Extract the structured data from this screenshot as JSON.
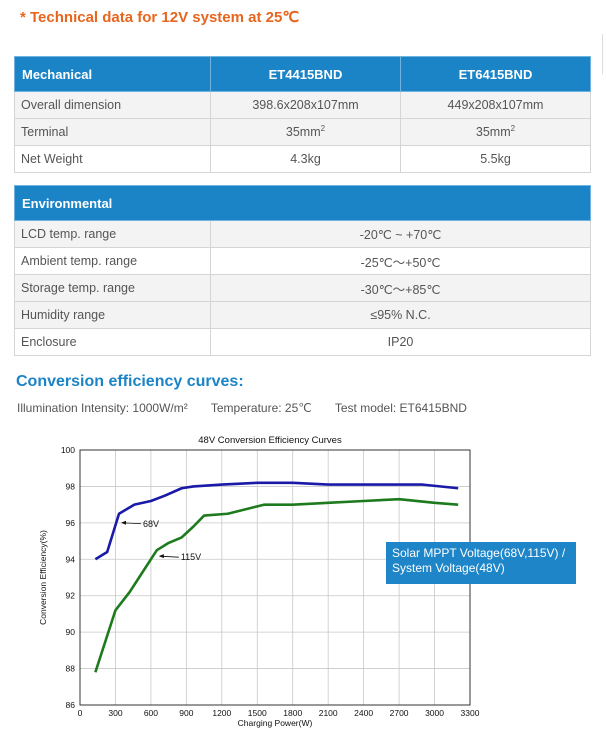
{
  "note": "* Technical data for 12V system at 25℃",
  "mechanical": {
    "headers": [
      "Mechanical",
      "ET4415BND",
      "ET6415BND"
    ],
    "rows": [
      {
        "label": "Overall dimension",
        "v1": "398.6x208x107mm",
        "v2": "449x208x107mm"
      },
      {
        "label": "Terminal",
        "v1": "35mm",
        "v2": "35mm",
        "sup": "2"
      },
      {
        "label": "Net Weight",
        "v1": "4.3kg",
        "v2": "5.5kg"
      }
    ]
  },
  "environmental": {
    "header": "Environmental",
    "rows": [
      {
        "label": "LCD temp. range",
        "value": "-20℃ ~ +70℃"
      },
      {
        "label": "Ambient temp. range",
        "value": "-25℃～+50℃"
      },
      {
        "label": "Storage temp. range",
        "value": "-30℃～+85℃"
      },
      {
        "label": "Humidity range",
        "value": "≤95% N.C."
      },
      {
        "label": "Enclosure",
        "value": "IP20"
      }
    ]
  },
  "conversion": {
    "heading": "Conversion efficiency curves:",
    "illumination": "Illumination Intensity: 1000W/m²",
    "temperature": "Temperature: 25℃",
    "model": "Test model: ET6415BND"
  },
  "legend_box": {
    "line1": "Solar MPPT Voltage(68V,115V) /",
    "line2": "System Voltage(48V)"
  },
  "chart_data": {
    "type": "line",
    "title": "48V Conversion Efficiency Curves",
    "xlabel": "Charging Power(W)",
    "ylabel": "Conversion Efficiency(%)",
    "xlim": [
      0,
      3300
    ],
    "ylim": [
      86,
      100
    ],
    "xticks": [
      0,
      300,
      600,
      900,
      1200,
      1500,
      1800,
      2100,
      2400,
      2700,
      3000,
      3300
    ],
    "yticks": [
      86,
      88,
      90,
      92,
      94,
      96,
      98,
      100
    ],
    "grid": true,
    "series": [
      {
        "name": "68V",
        "color": "#1a1aa8",
        "x": [
          130,
          230,
          330,
          460,
          600,
          720,
          860,
          960,
          1200,
          1500,
          1800,
          2100,
          2400,
          2700,
          2900,
          3200
        ],
        "y": [
          94.0,
          94.4,
          96.5,
          97.0,
          97.2,
          97.5,
          97.9,
          98.0,
          98.1,
          98.2,
          98.2,
          98.1,
          98.1,
          98.1,
          98.1,
          97.9
        ]
      },
      {
        "name": "115V",
        "color": "#1d7a1d",
        "x": [
          130,
          300,
          420,
          500,
          650,
          750,
          860,
          960,
          1050,
          1250,
          1560,
          1800,
          2100,
          2400,
          2700,
          3000,
          3200
        ],
        "y": [
          87.8,
          91.2,
          92.2,
          93.0,
          94.5,
          94.9,
          95.2,
          95.8,
          96.4,
          96.5,
          97.0,
          97.0,
          97.1,
          97.2,
          97.3,
          97.1,
          97.0
        ]
      }
    ]
  }
}
